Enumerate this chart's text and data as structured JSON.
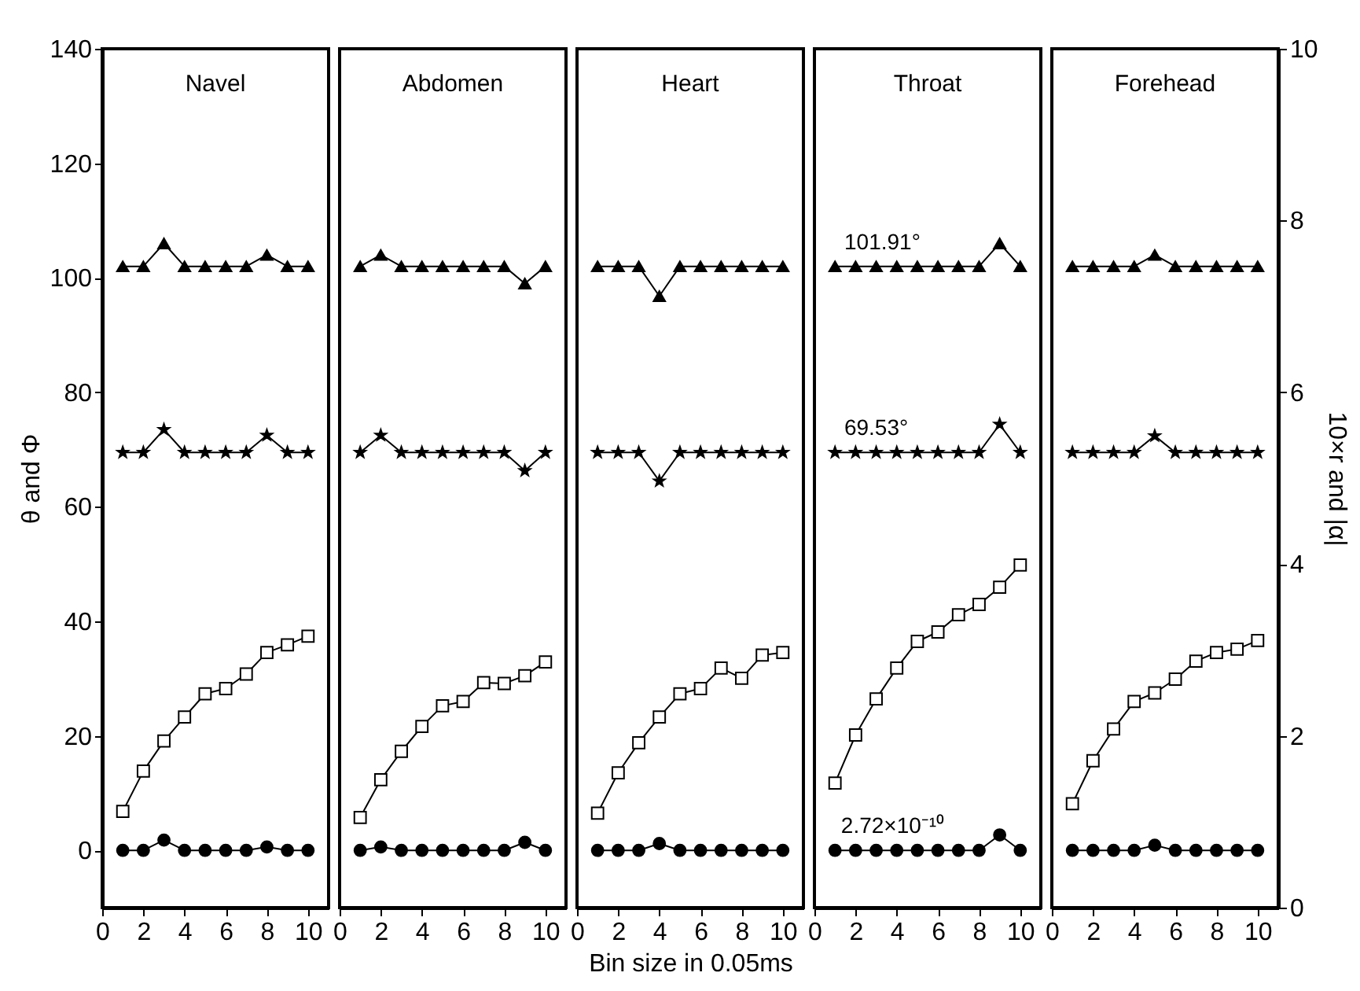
{
  "chart_data": [
    {
      "type": "line",
      "title": "Navel",
      "ylabel": "θ and Φ",
      "x": [
        1,
        2,
        3,
        4,
        5,
        6,
        7,
        8,
        9,
        10
      ],
      "xlim": [
        0,
        11
      ],
      "xticks": [
        0,
        2,
        4,
        6,
        8,
        10
      ],
      "ylim": [
        -10,
        140
      ],
      "yticks": [
        0,
        20,
        40,
        60,
        80,
        100,
        120,
        140
      ],
      "y2lim": [
        0,
        10
      ],
      "tick_labels": "xy",
      "line_style": "solid",
      "series": [
        {
          "color": "#000000",
          "marker": "triangle",
          "values": [
            102,
            102,
            106,
            102,
            102,
            102,
            102,
            104,
            102,
            102
          ]
        },
        {
          "color": "#000000",
          "marker": "star",
          "values": [
            69.5,
            69.5,
            73.5,
            69.5,
            69.5,
            69.5,
            69.5,
            72.5,
            69.5,
            69.5
          ]
        },
        {
          "color": "#000000",
          "marker": "square",
          "axis": "y2",
          "values": [
            1.12,
            1.59,
            1.94,
            2.22,
            2.49,
            2.55,
            2.72,
            2.97,
            3.06,
            3.16
          ]
        },
        {
          "color": "#000000",
          "marker": "circle",
          "values": [
            0,
            0,
            1.8,
            0,
            0,
            0,
            0,
            0.6,
            0,
            0
          ]
        }
      ]
    },
    {
      "type": "line",
      "title": "Abdomen",
      "x": [
        1,
        2,
        3,
        4,
        5,
        6,
        7,
        8,
        9,
        10
      ],
      "xlim": [
        0,
        11
      ],
      "xticks": [
        0,
        2,
        4,
        6,
        8,
        10
      ],
      "ylim": [
        -10,
        140
      ],
      "y2lim": [
        0,
        10
      ],
      "tick_labels": "x",
      "line_style": "solid",
      "series": [
        {
          "color": "#000000",
          "marker": "triangle",
          "values": [
            102,
            104,
            102,
            102,
            102,
            102,
            102,
            102,
            99,
            102
          ]
        },
        {
          "color": "#000000",
          "marker": "star",
          "values": [
            69.5,
            72.5,
            69.5,
            69.5,
            69.5,
            69.5,
            69.5,
            69.5,
            66.3,
            69.5
          ]
        },
        {
          "color": "#000000",
          "marker": "square",
          "axis": "y2",
          "values": [
            1.05,
            1.49,
            1.82,
            2.11,
            2.35,
            2.4,
            2.62,
            2.61,
            2.7,
            2.86
          ]
        },
        {
          "color": "#000000",
          "marker": "circle",
          "values": [
            0,
            0.6,
            0,
            0,
            0,
            0,
            0,
            0,
            1.4,
            0
          ]
        }
      ]
    },
    {
      "type": "line",
      "title": "Heart",
      "xlabel": "Bin size in 0.05ms",
      "x": [
        1,
        2,
        3,
        4,
        5,
        6,
        7,
        8,
        9,
        10
      ],
      "xlim": [
        0,
        11
      ],
      "xticks": [
        0,
        2,
        4,
        6,
        8,
        10
      ],
      "ylim": [
        -10,
        140
      ],
      "y2lim": [
        0,
        10
      ],
      "tick_labels": "x",
      "line_style": "solid",
      "series": [
        {
          "color": "#000000",
          "marker": "triangle",
          "values": [
            102,
            102,
            102,
            96.8,
            102,
            102,
            102,
            102,
            102,
            102
          ]
        },
        {
          "color": "#000000",
          "marker": "star",
          "values": [
            69.5,
            69.5,
            69.5,
            64.5,
            69.5,
            69.5,
            69.5,
            69.5,
            69.5,
            69.5
          ]
        },
        {
          "color": "#000000",
          "marker": "square",
          "axis": "y2",
          "values": [
            1.1,
            1.57,
            1.92,
            2.22,
            2.49,
            2.55,
            2.79,
            2.67,
            2.94,
            2.97
          ]
        },
        {
          "color": "#000000",
          "marker": "circle",
          "values": [
            0,
            0,
            0,
            1.2,
            0,
            0,
            0,
            0,
            0,
            0
          ]
        }
      ]
    },
    {
      "type": "line",
      "title": "Throat",
      "x": [
        1,
        2,
        3,
        4,
        5,
        6,
        7,
        8,
        9,
        10
      ],
      "xlim": [
        0,
        11
      ],
      "xticks": [
        0,
        2,
        4,
        6,
        8,
        10
      ],
      "ylim": [
        -10,
        140
      ],
      "y2lim": [
        0,
        10
      ],
      "tick_labels": "x",
      "line_style": "solid",
      "annotations": [
        {
          "text": "101.91°",
          "x": 3.3,
          "y": 101.91
        },
        {
          "text": "69.53°",
          "x": 3,
          "y": 69.53
        },
        {
          "text": "2.72×10⁻¹⁰",
          "x": 3.8,
          "y": 0
        }
      ],
      "series": [
        {
          "color": "#000000",
          "marker": "triangle",
          "values": [
            102,
            102,
            102,
            102,
            102,
            102,
            102,
            102,
            106,
            102
          ]
        },
        {
          "color": "#000000",
          "marker": "star",
          "values": [
            69.5,
            69.5,
            69.5,
            69.5,
            69.5,
            69.5,
            69.5,
            69.5,
            74.4,
            69.5
          ]
        },
        {
          "color": "#000000",
          "marker": "square",
          "axis": "y2",
          "values": [
            1.45,
            2.01,
            2.43,
            2.79,
            3.1,
            3.21,
            3.41,
            3.53,
            3.73,
            3.99
          ]
        },
        {
          "color": "#000000",
          "marker": "circle",
          "values": [
            0,
            0,
            0,
            0,
            0,
            0,
            0,
            0,
            2.7,
            0
          ]
        }
      ]
    },
    {
      "type": "line",
      "title": "Forehead",
      "y2label": "10×r and |α|",
      "x": [
        1,
        2,
        3,
        4,
        5,
        6,
        7,
        8,
        9,
        10
      ],
      "xlim": [
        0,
        11
      ],
      "xticks": [
        0,
        2,
        4,
        6,
        8,
        10
      ],
      "ylim": [
        -10,
        140
      ],
      "y2lim": [
        0,
        10
      ],
      "y2ticks": [
        0,
        2,
        4,
        6,
        8,
        10
      ],
      "tick_labels": "xy2",
      "line_style": "solid",
      "series": [
        {
          "color": "#000000",
          "marker": "triangle",
          "values": [
            102,
            102,
            102,
            102,
            104,
            102,
            102,
            102,
            102,
            102
          ]
        },
        {
          "color": "#000000",
          "marker": "star",
          "values": [
            69.5,
            69.5,
            69.5,
            69.5,
            72.4,
            69.5,
            69.5,
            69.5,
            69.5,
            69.5
          ]
        },
        {
          "color": "#000000",
          "marker": "square",
          "axis": "y2",
          "values": [
            1.21,
            1.71,
            2.08,
            2.4,
            2.5,
            2.66,
            2.87,
            2.97,
            3.01,
            3.11
          ]
        },
        {
          "color": "#000000",
          "marker": "circle",
          "values": [
            0,
            0,
            0,
            0,
            0.9,
            0,
            0,
            0,
            0,
            0
          ]
        }
      ]
    }
  ]
}
